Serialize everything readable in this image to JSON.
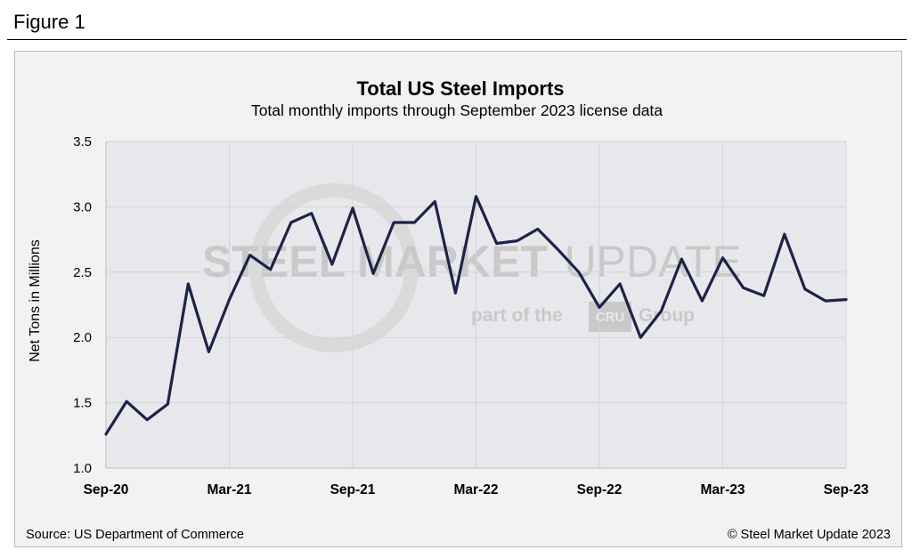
{
  "figure_label": "Figure 1",
  "watermark": {
    "brand": "STEEL MARKET UPDATE",
    "brand_bold": "STEEL MARKET",
    "brand_light": "UPDATE",
    "tagline_pre": "part of the",
    "tagline_cru": "CRU",
    "tagline_post": "Group",
    "color": "#c9c9c9"
  },
  "footer": {
    "source": "Source: US Department of Commerce",
    "copyright": "© Steel Market Update 2023"
  },
  "chart_data": {
    "type": "line",
    "title": "Total US Steel Imports",
    "subtitle": "Total monthly  imports through  September 2023 license data",
    "ylabel": "Net Tons in Millions",
    "xlabel": "",
    "ylim": [
      1.0,
      3.5
    ],
    "yticks": [
      "1.0",
      "1.5",
      "2.0",
      "2.5",
      "3.0",
      "3.5"
    ],
    "grid": true,
    "line_color": "#1c2347",
    "x_tick_labels": [
      "Sep-20",
      "Mar-21",
      "Sep-21",
      "Mar-22",
      "Sep-22",
      "Mar-23",
      "Sep-23"
    ],
    "x": [
      "Sep-20",
      "Oct-20",
      "Nov-20",
      "Dec-20",
      "Jan-21",
      "Feb-21",
      "Mar-21",
      "Apr-21",
      "May-21",
      "Jun-21",
      "Jul-21",
      "Aug-21",
      "Sep-21",
      "Oct-21",
      "Nov-21",
      "Dec-21",
      "Jan-22",
      "Feb-22",
      "Mar-22",
      "Apr-22",
      "May-22",
      "Jun-22",
      "Jul-22",
      "Aug-22",
      "Sep-22",
      "Oct-22",
      "Nov-22",
      "Dec-22",
      "Jan-23",
      "Feb-23",
      "Mar-23",
      "Apr-23",
      "May-23",
      "Jun-23",
      "Jul-23",
      "Aug-23",
      "Sep-23"
    ],
    "values": [
      1.26,
      1.51,
      1.37,
      1.49,
      2.41,
      1.89,
      2.29,
      2.63,
      2.52,
      2.88,
      2.95,
      2.56,
      2.99,
      2.49,
      2.88,
      2.88,
      3.04,
      2.34,
      3.08,
      2.72,
      2.74,
      2.83,
      2.67,
      2.5,
      2.23,
      2.41,
      2.0,
      2.2,
      2.6,
      2.28,
      2.61,
      2.38,
      2.32,
      2.79,
      2.37,
      2.28,
      2.29
    ]
  }
}
